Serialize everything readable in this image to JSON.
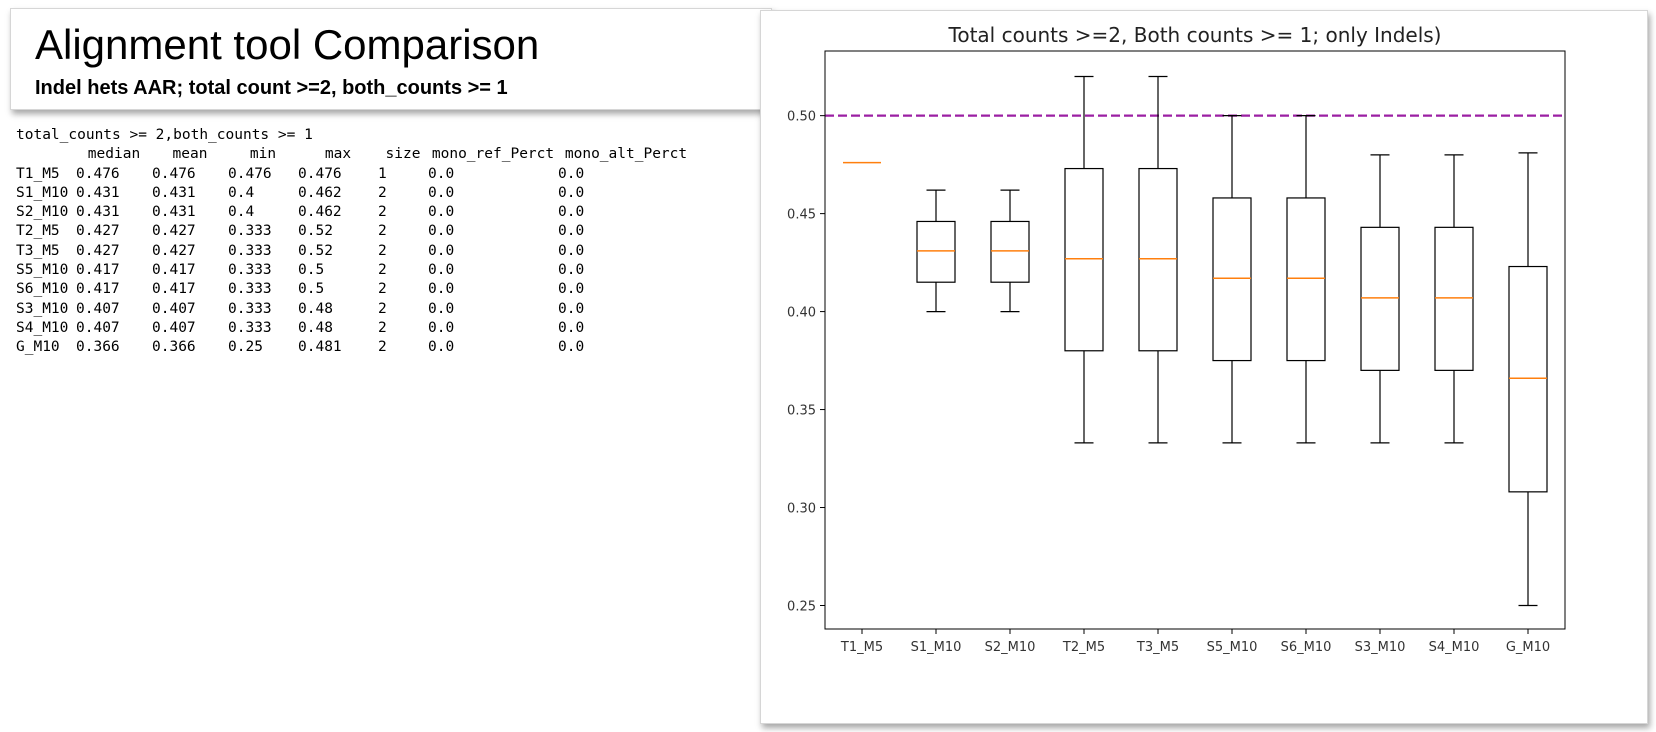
{
  "slide": {
    "title": "Alignment tool Comparison",
    "subtitle": "Indel hets AAR; total count >=2, both_counts >= 1"
  },
  "stats_table": {
    "caption": "total_counts >= 2,both_counts >= 1",
    "columns": [
      "median",
      "mean",
      "min",
      "max",
      "size",
      "mono_ref_Perct",
      "mono_alt_Perct"
    ],
    "rows": [
      [
        "T1_M5",
        "0.476",
        "0.476",
        "0.476",
        "0.476",
        "1",
        "0.0",
        "0.0"
      ],
      [
        "S1_M10",
        "0.431",
        "0.431",
        "0.4",
        "0.462",
        "2",
        "0.0",
        "0.0"
      ],
      [
        "S2_M10",
        "0.431",
        "0.431",
        "0.4",
        "0.462",
        "2",
        "0.0",
        "0.0"
      ],
      [
        "T2_M5",
        "0.427",
        "0.427",
        "0.333",
        "0.52",
        "2",
        "0.0",
        "0.0"
      ],
      [
        "T3_M5",
        "0.427",
        "0.427",
        "0.333",
        "0.52",
        "2",
        "0.0",
        "0.0"
      ],
      [
        "S5_M10",
        "0.417",
        "0.417",
        "0.333",
        "0.5",
        "2",
        "0.0",
        "0.0"
      ],
      [
        "S6_M10",
        "0.417",
        "0.417",
        "0.333",
        "0.5",
        "2",
        "0.0",
        "0.0"
      ],
      [
        "S3_M10",
        "0.407",
        "0.407",
        "0.333",
        "0.48",
        "2",
        "0.0",
        "0.0"
      ],
      [
        "S4_M10",
        "0.407",
        "0.407",
        "0.333",
        "0.48",
        "2",
        "0.0",
        "0.0"
      ],
      [
        "G_M10",
        "0.366",
        "0.366",
        "0.25",
        "0.481",
        "2",
        "0.0",
        "0.0"
      ]
    ]
  },
  "chart_data": {
    "type": "box",
    "title": "Total counts >=2, Both counts >= 1; only Indels)",
    "xlabel": "",
    "ylabel": "",
    "ylim": [
      0.238,
      0.533
    ],
    "yticks": [
      "0.25",
      "0.30",
      "0.35",
      "0.40",
      "0.45",
      "0.50"
    ],
    "reference_line": {
      "y": 0.5,
      "style": "dashed",
      "color": "#9b1fa3"
    },
    "box_color": "#000000",
    "median_color": "#ff7f0e",
    "categories": [
      "T1_M5",
      "S1_M10",
      "S2_M10",
      "T2_M5",
      "T3_M5",
      "S5_M10",
      "S6_M10",
      "S3_M10",
      "S4_M10",
      "G_M10"
    ],
    "boxes": [
      {
        "whisker_low": 0.476,
        "q1": 0.476,
        "median": 0.476,
        "q3": 0.476,
        "whisker_high": 0.476
      },
      {
        "whisker_low": 0.4,
        "q1": 0.415,
        "median": 0.431,
        "q3": 0.446,
        "whisker_high": 0.462
      },
      {
        "whisker_low": 0.4,
        "q1": 0.415,
        "median": 0.431,
        "q3": 0.446,
        "whisker_high": 0.462
      },
      {
        "whisker_low": 0.333,
        "q1": 0.38,
        "median": 0.427,
        "q3": 0.473,
        "whisker_high": 0.52
      },
      {
        "whisker_low": 0.333,
        "q1": 0.38,
        "median": 0.427,
        "q3": 0.473,
        "whisker_high": 0.52
      },
      {
        "whisker_low": 0.333,
        "q1": 0.375,
        "median": 0.417,
        "q3": 0.458,
        "whisker_high": 0.5
      },
      {
        "whisker_low": 0.333,
        "q1": 0.375,
        "median": 0.417,
        "q3": 0.458,
        "whisker_high": 0.5
      },
      {
        "whisker_low": 0.333,
        "q1": 0.37,
        "median": 0.407,
        "q3": 0.443,
        "whisker_high": 0.48
      },
      {
        "whisker_low": 0.333,
        "q1": 0.37,
        "median": 0.407,
        "q3": 0.443,
        "whisker_high": 0.48
      },
      {
        "whisker_low": 0.25,
        "q1": 0.308,
        "median": 0.366,
        "q3": 0.423,
        "whisker_high": 0.481
      }
    ]
  }
}
